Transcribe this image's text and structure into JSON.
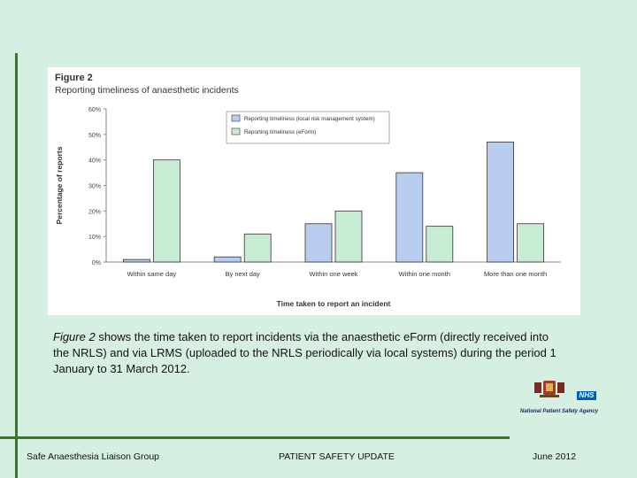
{
  "figure": {
    "label": "Figure 2",
    "title": "Reporting timeliness of anaesthetic incidents"
  },
  "chart_data": {
    "type": "bar",
    "title": "Reporting timeliness of anaesthetic incidents",
    "xlabel": "Time taken to report an incident",
    "ylabel": "Percentage of reports",
    "ylim": [
      0,
      60
    ],
    "yticks": [
      "0%",
      "10%",
      "20%",
      "30%",
      "40%",
      "50%",
      "60%"
    ],
    "categories": [
      "Within same day",
      "By next day",
      "Within one week",
      "Within one month",
      "More than one month"
    ],
    "series": [
      {
        "name": "Reporting timeliness (local risk management system)",
        "values": [
          1,
          2,
          15,
          35,
          47
        ],
        "color": "#b9cdf0"
      },
      {
        "name": "Reporting timeliness (eForm)",
        "values": [
          40,
          11,
          20,
          14,
          15
        ],
        "color": "#c8ecd3"
      }
    ],
    "legend": "top-right",
    "grid": false
  },
  "caption": {
    "lead": "Figure 2",
    "body": " shows the time taken to report incidents via the anaesthetic eForm (directly received into the NRLS) and via LRMS (uploaded to the NRLS periodically via local systems) during the period 1 January to 31 March 2012."
  },
  "logo": {
    "badge": "NHS",
    "agency": "National Patient Safety Agency"
  },
  "footer": {
    "left": "Safe Anaesthesia Liaison Group",
    "center": "PATIENT SAFETY UPDATE",
    "right": "June 2012"
  },
  "colors": {
    "background": "#d5efe3",
    "accent_bar": "#2e7d1f",
    "nhs_blue": "#005eb8"
  }
}
